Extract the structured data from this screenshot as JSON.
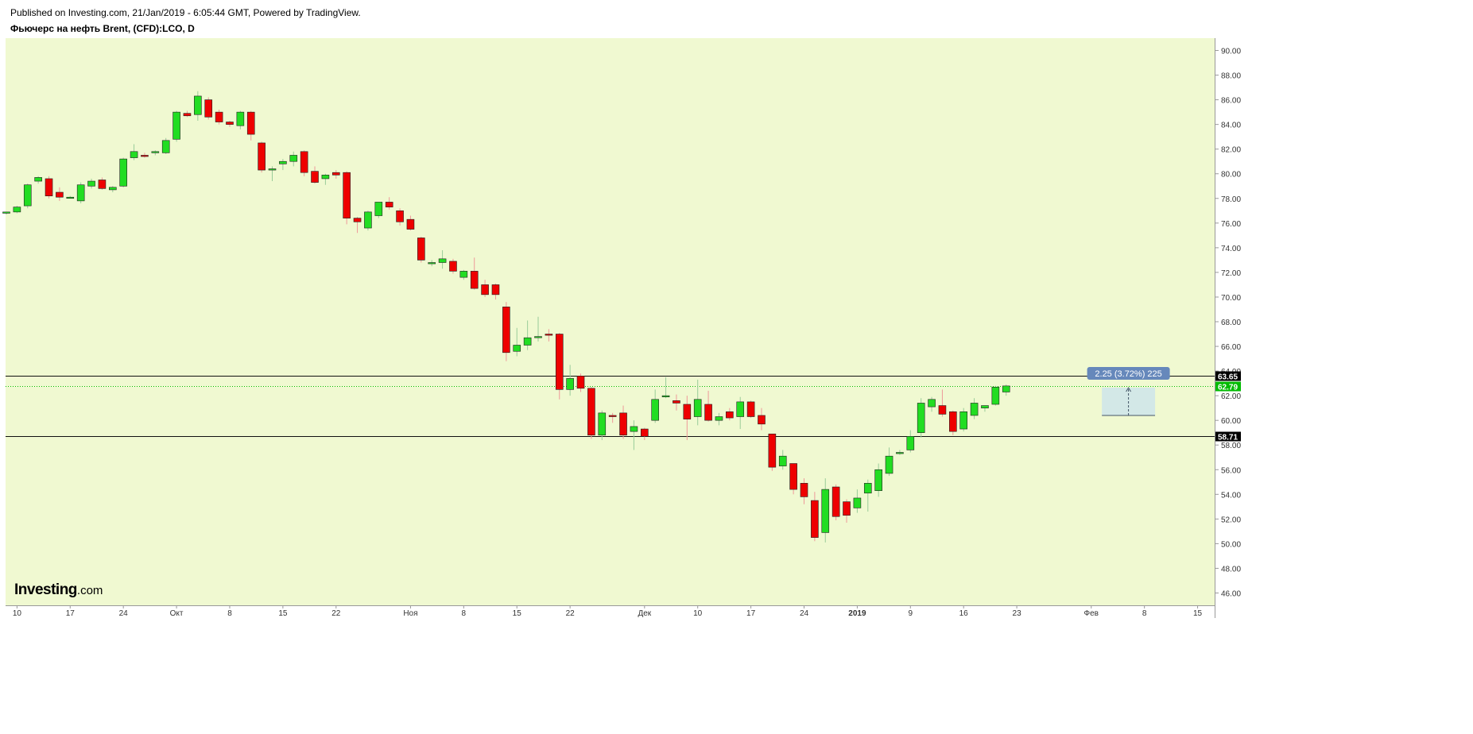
{
  "header": {
    "published": "Published on Investing.com, 21/Jan/2019 - 6:05:44 GMT, Powered by TradingView.",
    "symbol_title": "Фьючерс на нефть Brent, (CFD):LCO, D"
  },
  "logo": {
    "brand": "Investing",
    "suffix": ".com"
  },
  "colors": {
    "background": "#f0f9d1",
    "up": "#22dd22",
    "down": "#ee0000",
    "outline": "#222222",
    "wick_up": "#99cc99",
    "wick_down": "#ee9999",
    "hline": "#111111",
    "last_price": "#00bb00",
    "measure": "#6688bb",
    "grid": "#e6ecd0"
  },
  "chart_data": {
    "type": "candlestick",
    "ylim": [
      45,
      91
    ],
    "y_ticks": [
      "90.00",
      "88.00",
      "86.00",
      "84.00",
      "82.00",
      "80.00",
      "78.00",
      "76.00",
      "74.00",
      "72.00",
      "70.00",
      "68.00",
      "66.00",
      "64.00",
      "62.00",
      "60.00",
      "58.00",
      "56.00",
      "54.00",
      "52.00",
      "50.00",
      "48.00",
      "46.00"
    ],
    "x_labels": [
      {
        "text": "10",
        "i": 1
      },
      {
        "text": "17",
        "i": 6
      },
      {
        "text": "24",
        "i": 11
      },
      {
        "text": "Окт",
        "i": 16
      },
      {
        "text": "8",
        "i": 21
      },
      {
        "text": "15",
        "i": 26
      },
      {
        "text": "22",
        "i": 31
      },
      {
        "text": "Ноя",
        "i": 38
      },
      {
        "text": "8",
        "i": 43
      },
      {
        "text": "15",
        "i": 48
      },
      {
        "text": "22",
        "i": 53
      },
      {
        "text": "Дек",
        "i": 60
      },
      {
        "text": "10",
        "i": 65
      },
      {
        "text": "17",
        "i": 70
      },
      {
        "text": "24",
        "i": 75
      },
      {
        "text": "2019",
        "i": 80
      },
      {
        "text": "9",
        "i": 85
      },
      {
        "text": "16",
        "i": 90
      },
      {
        "text": "23",
        "i": 95
      },
      {
        "text": "Фев",
        "i": 102
      },
      {
        "text": "8",
        "i": 107
      },
      {
        "text": "15",
        "i": 112
      }
    ],
    "candles": [
      [
        76.8,
        76.9,
        76.7,
        76.9
      ],
      [
        76.9,
        77.4,
        76.8,
        77.3
      ],
      [
        77.4,
        79.2,
        77.2,
        79.1
      ],
      [
        79.4,
        79.8,
        79.2,
        79.7
      ],
      [
        79.6,
        79.8,
        78.0,
        78.2
      ],
      [
        78.5,
        78.9,
        77.8,
        78.1
      ],
      [
        78.1,
        78.2,
        78.0,
        78.1
      ],
      [
        77.8,
        79.3,
        77.6,
        79.1
      ],
      [
        79.0,
        79.6,
        78.8,
        79.4
      ],
      [
        79.5,
        79.7,
        78.7,
        78.8
      ],
      [
        78.7,
        79.0,
        78.5,
        78.9
      ],
      [
        79.0,
        81.3,
        78.9,
        81.2
      ],
      [
        81.3,
        82.4,
        81.1,
        81.8
      ],
      [
        81.5,
        81.7,
        81.3,
        81.4
      ],
      [
        81.7,
        81.9,
        81.5,
        81.8
      ],
      [
        81.7,
        82.9,
        81.6,
        82.7
      ],
      [
        82.8,
        85.1,
        82.6,
        85.0
      ],
      [
        84.9,
        85.1,
        84.6,
        84.7
      ],
      [
        84.8,
        86.7,
        84.3,
        86.3
      ],
      [
        86.0,
        86.2,
        84.4,
        84.6
      ],
      [
        85.0,
        85.2,
        84.0,
        84.2
      ],
      [
        84.2,
        84.3,
        83.8,
        84.0
      ],
      [
        83.9,
        85.1,
        83.6,
        85.0
      ],
      [
        85.0,
        85.1,
        82.7,
        83.2
      ],
      [
        82.5,
        82.6,
        80.1,
        80.3
      ],
      [
        80.3,
        80.6,
        79.4,
        80.4
      ],
      [
        80.8,
        81.2,
        80.3,
        81.0
      ],
      [
        81.0,
        81.8,
        80.6,
        81.5
      ],
      [
        81.8,
        81.9,
        79.8,
        80.1
      ],
      [
        80.2,
        80.6,
        79.2,
        79.3
      ],
      [
        79.6,
        80.0,
        79.1,
        79.9
      ],
      [
        80.1,
        80.3,
        79.6,
        79.9
      ],
      [
        80.1,
        80.2,
        75.9,
        76.4
      ],
      [
        76.4,
        76.5,
        75.2,
        76.1
      ],
      [
        75.6,
        77.0,
        75.4,
        76.9
      ],
      [
        76.6,
        77.7,
        76.4,
        77.7
      ],
      [
        77.7,
        78.1,
        77.1,
        77.3
      ],
      [
        77.0,
        77.2,
        75.8,
        76.1
      ],
      [
        76.3,
        76.6,
        75.4,
        75.5
      ],
      [
        74.8,
        74.9,
        72.8,
        73.0
      ],
      [
        72.7,
        73.0,
        72.5,
        72.8
      ],
      [
        72.8,
        73.8,
        72.3,
        73.1
      ],
      [
        72.9,
        73.1,
        71.9,
        72.1
      ],
      [
        71.6,
        72.2,
        71.4,
        72.1
      ],
      [
        72.1,
        73.2,
        70.6,
        70.7
      ],
      [
        71.0,
        71.4,
        70.0,
        70.2
      ],
      [
        71.0,
        71.1,
        69.8,
        70.2
      ],
      [
        69.2,
        69.6,
        64.8,
        65.5
      ],
      [
        65.6,
        67.5,
        65.2,
        66.1
      ],
      [
        66.1,
        68.1,
        65.7,
        66.7
      ],
      [
        66.8,
        68.4,
        66.4,
        66.8
      ],
      [
        67.0,
        67.4,
        66.4,
        66.9
      ],
      [
        67.0,
        67.1,
        61.7,
        62.5
      ],
      [
        62.5,
        64.5,
        62.0,
        63.4
      ],
      [
        63.6,
        63.8,
        62.3,
        62.6
      ],
      [
        62.6,
        62.7,
        58.5,
        58.8
      ],
      [
        58.8,
        60.8,
        58.4,
        60.6
      ],
      [
        60.4,
        60.6,
        59.8,
        60.3
      ],
      [
        60.6,
        61.2,
        58.5,
        58.8
      ],
      [
        59.1,
        60.0,
        57.6,
        59.5
      ],
      [
        59.3,
        59.4,
        58.4,
        58.7
      ],
      [
        60.0,
        62.5,
        59.8,
        61.7
      ],
      [
        61.9,
        63.5,
        61.8,
        62.0
      ],
      [
        61.6,
        62.1,
        60.8,
        61.4
      ],
      [
        61.3,
        62.0,
        58.4,
        60.1
      ],
      [
        60.3,
        63.3,
        59.6,
        61.7
      ],
      [
        61.3,
        62.4,
        59.9,
        60.0
      ],
      [
        60.0,
        60.6,
        59.6,
        60.3
      ],
      [
        60.7,
        61.0,
        60.0,
        60.2
      ],
      [
        60.3,
        61.9,
        59.3,
        61.5
      ],
      [
        61.5,
        61.6,
        60.2,
        60.3
      ],
      [
        60.4,
        61.0,
        59.2,
        59.7
      ],
      [
        58.9,
        58.9,
        55.9,
        56.2
      ],
      [
        56.3,
        57.6,
        56.0,
        57.1
      ],
      [
        56.5,
        56.5,
        54.0,
        54.4
      ],
      [
        54.9,
        55.3,
        53.2,
        53.8
      ],
      [
        53.5,
        54.2,
        50.2,
        50.5
      ],
      [
        50.9,
        55.3,
        50.1,
        54.4
      ],
      [
        54.6,
        54.8,
        51.9,
        52.2
      ],
      [
        53.4,
        53.6,
        51.7,
        52.3
      ],
      [
        52.9,
        54.4,
        52.5,
        53.7
      ],
      [
        54.1,
        55.2,
        52.6,
        54.9
      ],
      [
        54.3,
        56.5,
        53.8,
        56.0
      ],
      [
        55.7,
        57.8,
        55.5,
        57.1
      ],
      [
        57.4,
        57.6,
        57.2,
        57.4
      ],
      [
        57.6,
        59.2,
        57.4,
        58.7
      ],
      [
        59.0,
        61.8,
        58.6,
        61.4
      ],
      [
        61.1,
        61.9,
        60.7,
        61.7
      ],
      [
        61.2,
        62.5,
        60.3,
        60.5
      ],
      [
        60.7,
        60.8,
        58.8,
        59.1
      ],
      [
        59.3,
        61.0,
        59.1,
        60.7
      ],
      [
        60.4,
        61.8,
        60.1,
        61.4
      ],
      [
        61.0,
        61.2,
        60.7,
        61.2
      ],
      [
        61.3,
        62.8,
        61.2,
        62.7
      ],
      [
        62.3,
        62.9,
        62.0,
        62.79
      ]
    ],
    "hlines": [
      {
        "value": 63.65,
        "label": "63.65"
      },
      {
        "value": 58.71,
        "label": "58.71"
      }
    ],
    "last_price": {
      "value": 62.79,
      "label": "62.79"
    },
    "measure": {
      "text": "2.25 (3.72%) 225",
      "from": 60.4,
      "to": 62.65,
      "i_from": 103,
      "i_to": 108
    }
  }
}
